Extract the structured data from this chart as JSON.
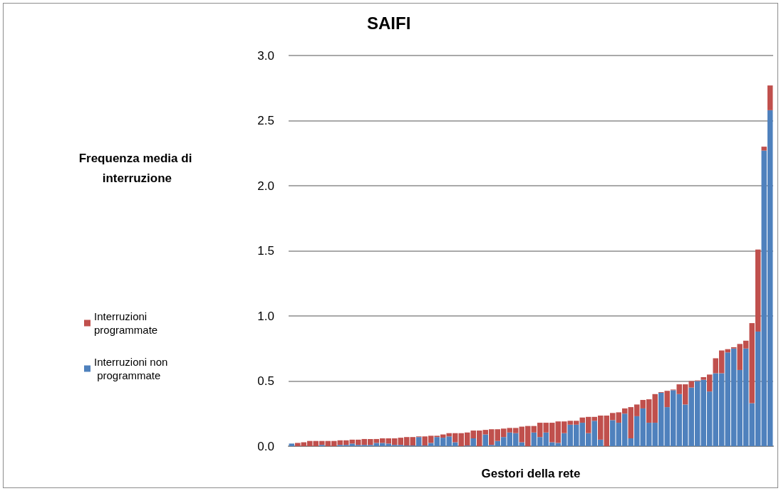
{
  "chart_data": {
    "type": "bar",
    "title": "SAIFI",
    "xlabel": "Gestori della rete",
    "annotations": [
      "Frequenza media di interruzione"
    ],
    "categories": [
      null,
      null,
      null,
      null,
      null,
      null,
      null,
      null,
      null,
      null,
      null,
      null,
      null,
      null,
      null,
      null,
      null,
      null,
      null,
      null,
      null,
      null,
      null,
      null,
      null,
      null,
      null,
      null,
      null,
      null,
      null,
      null,
      null,
      null,
      null,
      null,
      null,
      null,
      null,
      null,
      null,
      null,
      null,
      null,
      null,
      null,
      null,
      null,
      null,
      null,
      null,
      null,
      null,
      null,
      null,
      null,
      null,
      null,
      null,
      null,
      null,
      null,
      null,
      null,
      null,
      null,
      null,
      null,
      null,
      null,
      null,
      null,
      null,
      null,
      null,
      null,
      null,
      null,
      null,
      null
    ],
    "series": [
      {
        "name": "Interruzioni non programmate",
        "color": "#4f81bd",
        "values": [
          0.02,
          0,
          0,
          0,
          0,
          0.01,
          0,
          0,
          0.01,
          0.01,
          0.02,
          0.01,
          0.01,
          0.01,
          0.025,
          0.025,
          0.02,
          0.01,
          0.01,
          0.005,
          0.005,
          0.07,
          0.005,
          0.025,
          0.07,
          0.065,
          0.075,
          0.03,
          0,
          0.005,
          0.06,
          0,
          0.09,
          0.01,
          0.04,
          0.07,
          0.105,
          0.1,
          0.03,
          0,
          0.105,
          0.07,
          0.105,
          0.03,
          0.025,
          0.1,
          0.165,
          0.165,
          0.18,
          0.1,
          0.195,
          0.05,
          0,
          0.2,
          0.18,
          0.25,
          0.06,
          0.23,
          0.29,
          0.18,
          0.18,
          0.41,
          0.3,
          0.43,
          0.4,
          0.32,
          0.45,
          0.5,
          0.51,
          0.42,
          0.56,
          0.56,
          0.72,
          0.75,
          0.585,
          0.75,
          0.33,
          0.88,
          2.27,
          2.58
        ]
      },
      {
        "name": "Interruzioni programmate",
        "color": "#c0504d",
        "values": [
          null,
          0.025,
          0.03,
          0.04,
          0.04,
          0.03,
          0.04,
          0.04,
          0.035,
          0.035,
          0.03,
          0.04,
          0.045,
          0.045,
          0.03,
          0.035,
          0.04,
          0.05,
          0.055,
          0.065,
          0.065,
          0.005,
          0.07,
          0.055,
          0.01,
          0.025,
          0.025,
          0.07,
          0.1,
          0.1,
          0.06,
          0.12,
          0.035,
          0.12,
          0.09,
          0.065,
          0.035,
          0.04,
          0.12,
          0.155,
          0.05,
          0.11,
          0.075,
          0.15,
          0.165,
          0.09,
          0.03,
          0.03,
          0.04,
          0.125,
          0.03,
          0.185,
          0.235,
          0.055,
          0.08,
          0.04,
          0.24,
          0.09,
          0.065,
          0.18,
          0.22,
          0.005,
          0.125,
          0.005,
          0.075,
          0.155,
          0.05,
          0.005,
          0.02,
          0.13,
          0.115,
          0.175,
          0.025,
          0.01,
          0.2,
          0.06,
          0.615,
          0.63,
          0.03,
          0.19
        ]
      }
    ],
    "stacked": true,
    "ylim": [
      0,
      3
    ],
    "yticks": [
      {
        "value": 0,
        "label": "0.0"
      },
      {
        "value": 0.5,
        "label": "0.5"
      },
      {
        "value": 1,
        "label": "1.0"
      },
      {
        "value": 1.5,
        "label": "1.5"
      },
      {
        "value": 2,
        "label": "2.0"
      },
      {
        "value": 2.5,
        "label": "2.5"
      },
      {
        "value": 3,
        "label": "3.0"
      }
    ],
    "grid": "y",
    "legend": "left"
  }
}
